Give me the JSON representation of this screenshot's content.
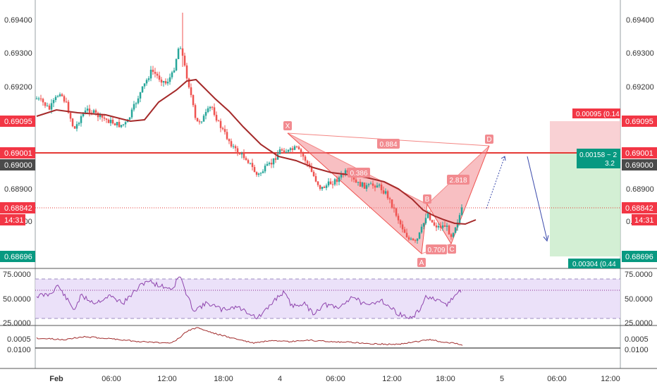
{
  "chart_data": {
    "type": "candlestick",
    "title": "",
    "x_ticks": [
      "Feb",
      "06:00",
      "12:00",
      "18:00",
      "4",
      "06:00",
      "12:00",
      "18:00",
      "5",
      "06:00",
      "12:00"
    ],
    "price_axis": {
      "ylim": [
        0.6866,
        0.6945
      ],
      "ticks": [
        "0.69400",
        "0.69300",
        "0.69200",
        "0.68900",
        "0.68800"
      ],
      "ticks_right": [
        "0.69400",
        "0.69300",
        "0.69200",
        "0.68900",
        "0.68800"
      ]
    },
    "price_labels": [
      {
        "text": "0.69095",
        "value": 0.69095,
        "color": "#f23645"
      },
      {
        "text": "0.69001",
        "value": 0.69001,
        "color": "#f23645"
      },
      {
        "text": "0.69000",
        "value": 0.69,
        "color": "#4a4a4a"
      },
      {
        "text": "0.68842",
        "value": 0.68842,
        "color": "#f23645"
      },
      {
        "text": "14:31",
        "value": 0.68815,
        "color": "#f23645"
      },
      {
        "text": "0.68696",
        "value": 0.68696,
        "color": "#089981"
      }
    ],
    "horizontal_level": 0.69001,
    "current_price": 0.68842,
    "pattern": {
      "name": "bat",
      "points": [
        {
          "label": "X",
          "value": 0.6906
        },
        {
          "label": "A",
          "value": 0.6872
        },
        {
          "label": "B",
          "value": 0.6885
        },
        {
          "label": "C",
          "value": 0.68765
        },
        {
          "label": "D",
          "value": 0.69012
        }
      ],
      "ratios": [
        "0.884",
        "0.386",
        "0.709",
        "2.818"
      ]
    },
    "position": {
      "target_label": "0.00095 (0.14",
      "risk_reward_label": "0.00158 ~ 2",
      "ratio": "3.2",
      "stop_label": "0.00304 (0.44",
      "entry": 0.69001,
      "target": 0.69095,
      "stop": 0.68696
    },
    "rsi": {
      "ylim": [
        22,
        78
      ],
      "ticks": [
        "75.0000",
        "50.0000",
        "25.0000"
      ],
      "band": [
        30,
        70
      ],
      "last": 57.5
    },
    "oscillator": {
      "ticks": [
        "0.0005",
        "0.0100"
      ]
    }
  }
}
